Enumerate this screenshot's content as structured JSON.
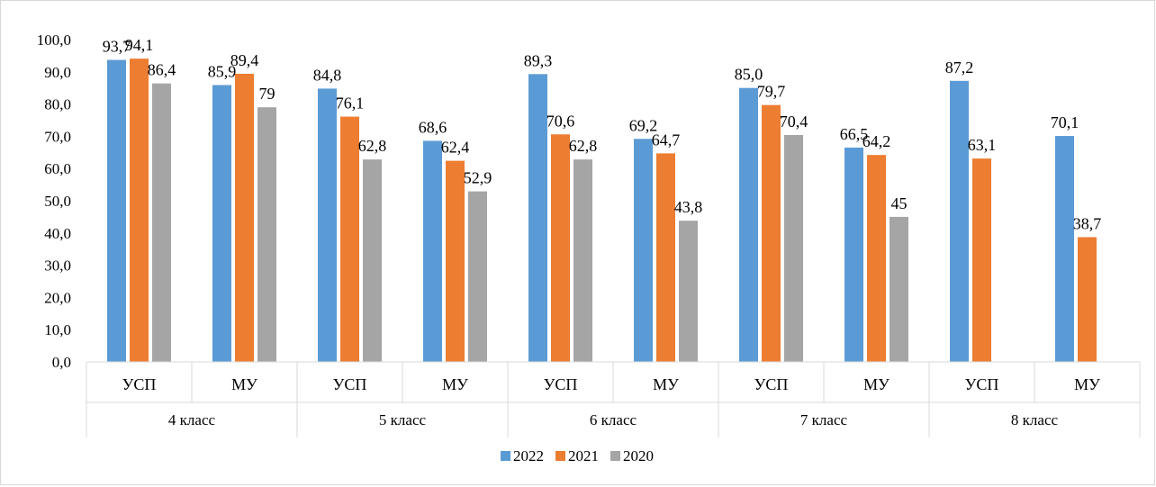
{
  "chart_data": {
    "type": "bar",
    "groups": [
      {
        "label": "4 класс",
        "categories": [
          "УСП",
          "МУ"
        ]
      },
      {
        "label": "5 класс",
        "categories": [
          "УСП",
          "МУ"
        ]
      },
      {
        "label": "6 класс",
        "categories": [
          "УСП",
          "МУ"
        ]
      },
      {
        "label": "7 класс",
        "categories": [
          "УСП",
          "МУ"
        ]
      },
      {
        "label": "8 класс",
        "categories": [
          "УСП",
          "МУ"
        ]
      }
    ],
    "series": [
      {
        "name": "2022",
        "color": "#5b9bd5",
        "values": [
          93.7,
          85.9,
          84.8,
          68.6,
          89.3,
          69.2,
          85.0,
          66.5,
          87.2,
          70.1
        ],
        "labels": [
          "93,7",
          "85,9",
          "84,8",
          "68,6",
          "89,3",
          "69,2",
          "85,0",
          "66,5",
          "87,2",
          "70,1"
        ]
      },
      {
        "name": "2021",
        "color": "#ed7d31",
        "values": [
          94.1,
          89.4,
          76.1,
          62.4,
          70.6,
          64.7,
          79.7,
          64.2,
          63.1,
          38.7
        ],
        "labels": [
          "94,1",
          "89,4",
          "76,1",
          "62,4",
          "70,6",
          "64,7",
          "79,7",
          "64,2",
          "63,1",
          "38,7"
        ]
      },
      {
        "name": "2020",
        "color": "#a5a5a5",
        "values": [
          86.4,
          79,
          62.8,
          52.9,
          62.8,
          43.8,
          70.4,
          45,
          null,
          null
        ],
        "labels": [
          "86,4",
          "79",
          "62,8",
          "52,9",
          "62,8",
          "43,8",
          "70,4",
          "45",
          null,
          null
        ]
      }
    ],
    "yticks": [
      "0,0",
      "10,0",
      "20,0",
      "30,0",
      "40,0",
      "50,0",
      "60,0",
      "70,0",
      "80,0",
      "90,0",
      "100,0"
    ],
    "ylim": [
      0,
      100
    ],
    "grid": false,
    "legend_position": "bottom"
  }
}
